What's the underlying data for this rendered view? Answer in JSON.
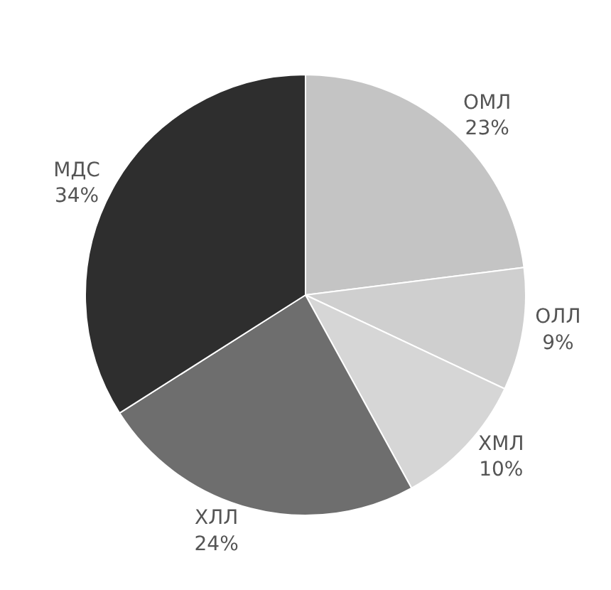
{
  "chart_data": {
    "type": "pie",
    "categories": [
      "ОМЛ",
      "ОЛЛ",
      "ХМЛ",
      "ХЛЛ",
      "МДС"
    ],
    "values": [
      23,
      9,
      10,
      24,
      34
    ],
    "value_labels": [
      "23%",
      "9%",
      "10%",
      "24%",
      "34%"
    ],
    "colors": [
      "#c4c4c4",
      "#cfcfcf",
      "#d6d6d6",
      "#6e6e6e",
      "#2e2e2e"
    ],
    "legend": false
  }
}
